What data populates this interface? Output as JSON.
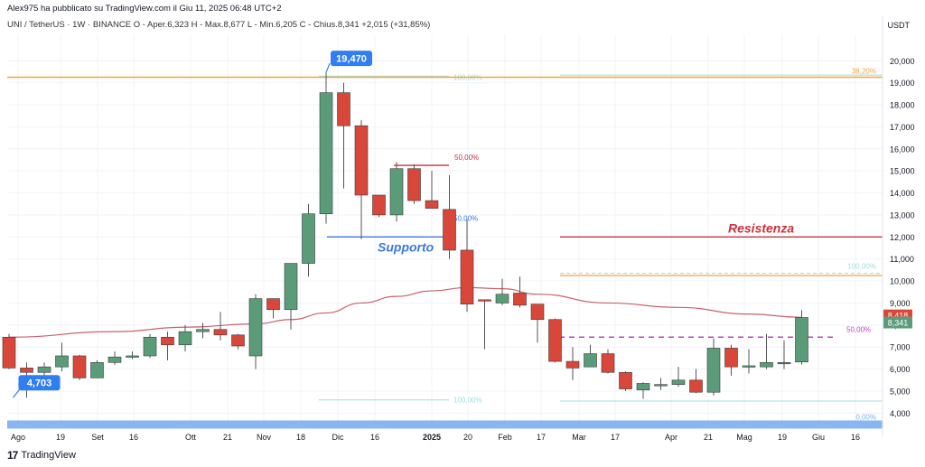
{
  "header": {
    "published": "Alex975 ha pubblicato su TradingView.com il Giu 11, 2025 06:48 UTC+2",
    "symbol_line": "UNI / TetherUS · 1W · BINANCE  O - Aper.6,323  H - Max.8,677  L - Min.6,205  C - Chius.8,341  +2,015 (+31,85%)",
    "currency": "USDT"
  },
  "brand": {
    "name": "TradingView"
  },
  "colors": {
    "up": "#5b9c78",
    "down": "#d9463a",
    "ma": "#c9626b",
    "fib_orange": "#f4a23a",
    "fib_cyan": "#9fdcde",
    "support": "#3a78e0",
    "resist": "#c8323e",
    "pink_dash": "#c044c0",
    "band": "#5f9ded",
    "label_blue": "#2f7ef2"
  },
  "chart_data": {
    "type": "candlestick",
    "title": "UNI / TetherUS · 1W · BINANCE",
    "ylim": [
      3.4,
      21.2
    ],
    "y_ticks": [
      "20,000",
      "19,000",
      "18,000",
      "17,000",
      "16,000",
      "15,000",
      "14,000",
      "13,000",
      "12,000",
      "11,000",
      "10,000",
      "9,000",
      "8,000",
      "7,000",
      "6,000",
      "5,000",
      "4,000"
    ],
    "x_ticks": [
      "Ago",
      "19",
      "Set",
      "16",
      "Ott",
      "21",
      "Nov",
      "18",
      "Dic",
      "16",
      "2025",
      "20",
      "Feb",
      "17",
      "Mar",
      "17",
      "Apr",
      "21",
      "Mag",
      "19",
      "Giu",
      "16"
    ],
    "x_ticks_bold": [
      "2025"
    ],
    "candles": [
      {
        "o": 7.45,
        "h": 7.6,
        "l": 6.0,
        "c": 6.05
      },
      {
        "o": 6.05,
        "h": 6.3,
        "l": 4.7,
        "c": 5.85
      },
      {
        "o": 5.85,
        "h": 6.3,
        "l": 5.5,
        "c": 6.1
      },
      {
        "o": 6.1,
        "h": 7.2,
        "l": 5.9,
        "c": 6.6
      },
      {
        "o": 6.6,
        "h": 6.65,
        "l": 5.5,
        "c": 5.6
      },
      {
        "o": 5.6,
        "h": 6.4,
        "l": 5.6,
        "c": 6.3
      },
      {
        "o": 6.3,
        "h": 6.8,
        "l": 6.2,
        "c": 6.55
      },
      {
        "o": 6.55,
        "h": 6.8,
        "l": 6.45,
        "c": 6.6
      },
      {
        "o": 6.6,
        "h": 7.6,
        "l": 6.5,
        "c": 7.45
      },
      {
        "o": 7.45,
        "h": 7.7,
        "l": 6.4,
        "c": 7.1
      },
      {
        "o": 7.1,
        "h": 8.0,
        "l": 6.8,
        "c": 7.7
      },
      {
        "o": 7.7,
        "h": 8.1,
        "l": 7.4,
        "c": 7.8
      },
      {
        "o": 7.8,
        "h": 8.6,
        "l": 7.3,
        "c": 7.55
      },
      {
        "o": 7.55,
        "h": 7.6,
        "l": 6.9,
        "c": 7.05
      },
      {
        "o": 6.6,
        "h": 9.4,
        "l": 6.0,
        "c": 9.2
      },
      {
        "o": 9.2,
        "h": 9.2,
        "l": 8.3,
        "c": 8.7
      },
      {
        "o": 8.7,
        "h": 10.8,
        "l": 7.8,
        "c": 10.8
      },
      {
        "o": 10.8,
        "h": 13.5,
        "l": 10.2,
        "c": 13.05
      },
      {
        "o": 13.05,
        "h": 19.47,
        "l": 12.6,
        "c": 18.55
      },
      {
        "o": 18.55,
        "h": 19.0,
        "l": 14.2,
        "c": 17.05
      },
      {
        "o": 17.05,
        "h": 17.3,
        "l": 11.9,
        "c": 13.9
      },
      {
        "o": 13.9,
        "h": 13.9,
        "l": 12.9,
        "c": 13.0
      },
      {
        "o": 13.0,
        "h": 15.4,
        "l": 12.7,
        "c": 15.1
      },
      {
        "o": 15.1,
        "h": 15.3,
        "l": 13.5,
        "c": 13.65
      },
      {
        "o": 13.65,
        "h": 15.0,
        "l": 13.3,
        "c": 13.3
      },
      {
        "o": 13.25,
        "h": 14.8,
        "l": 11.0,
        "c": 11.4
      },
      {
        "o": 11.4,
        "h": 12.8,
        "l": 8.6,
        "c": 8.95
      },
      {
        "o": 9.15,
        "h": 9.1,
        "l": 6.9,
        "c": 9.1
      },
      {
        "o": 9.0,
        "h": 10.1,
        "l": 8.9,
        "c": 9.4
      },
      {
        "o": 9.45,
        "h": 10.2,
        "l": 8.8,
        "c": 8.9
      },
      {
        "o": 8.95,
        "h": 8.95,
        "l": 7.2,
        "c": 8.25
      },
      {
        "o": 8.25,
        "h": 8.3,
        "l": 6.3,
        "c": 6.35
      },
      {
        "o": 6.35,
        "h": 7.0,
        "l": 5.5,
        "c": 6.05
      },
      {
        "o": 6.1,
        "h": 7.1,
        "l": 6.1,
        "c": 6.7
      },
      {
        "o": 6.7,
        "h": 6.9,
        "l": 5.8,
        "c": 5.85
      },
      {
        "o": 5.85,
        "h": 5.9,
        "l": 5.0,
        "c": 5.1
      },
      {
        "o": 5.05,
        "h": 5.4,
        "l": 4.65,
        "c": 5.35
      },
      {
        "o": 5.3,
        "h": 5.6,
        "l": 5.05,
        "c": 5.3
      },
      {
        "o": 5.3,
        "h": 6.1,
        "l": 5.2,
        "c": 5.5
      },
      {
        "o": 5.5,
        "h": 6.0,
        "l": 4.9,
        "c": 4.95
      },
      {
        "o": 4.95,
        "h": 7.4,
        "l": 4.8,
        "c": 6.95
      },
      {
        "o": 6.95,
        "h": 7.1,
        "l": 5.7,
        "c": 6.1
      },
      {
        "o": 6.1,
        "h": 6.9,
        "l": 5.8,
        "c": 6.15
      },
      {
        "o": 6.1,
        "h": 7.6,
        "l": 6.0,
        "c": 6.3
      },
      {
        "o": 6.3,
        "h": 7.3,
        "l": 6.0,
        "c": 6.3
      },
      {
        "o": 6.323,
        "h": 8.677,
        "l": 6.205,
        "c": 8.341
      }
    ],
    "moving_average": [
      [
        0,
        7.45
      ],
      [
        6,
        7.7
      ],
      [
        10,
        7.9
      ],
      [
        14,
        8.05
      ],
      [
        16,
        8.25
      ],
      [
        18,
        8.55
      ],
      [
        20,
        9.0
      ],
      [
        22,
        9.3
      ],
      [
        24,
        9.55
      ],
      [
        26,
        9.7
      ],
      [
        28,
        9.65
      ],
      [
        30,
        9.4
      ],
      [
        34,
        9.0
      ],
      [
        38,
        8.8
      ],
      [
        42,
        8.5
      ],
      [
        45,
        8.35
      ]
    ],
    "fib_sets": [
      {
        "levels": [
          {
            "label": "100,00%",
            "value": 19.3
          },
          {
            "label": "50,00%",
            "value": 12.9
          },
          {
            "label": "100,00%",
            "value": 4.6
          }
        ]
      },
      {
        "levels": [
          {
            "label": "38,20%",
            "value": 19.25
          },
          {
            "label": "100,00%",
            "value": 10.35
          },
          {
            "label": "50,00%",
            "value": 7.8
          },
          {
            "label": "0,00%",
            "value": 3.75
          }
        ]
      }
    ],
    "annotations": {
      "high_label": "19,470",
      "low_label": "4,703",
      "supporto": "Supporto",
      "resistenza": "Resistenza",
      "fib_50_red": "50,00%",
      "price_ma": "8,418",
      "price_close": "8,341"
    },
    "support_level": 12.0,
    "resistance_level": 12.0,
    "fib_cut_level": 10.25,
    "pink_dashed_level": 7.45
  }
}
